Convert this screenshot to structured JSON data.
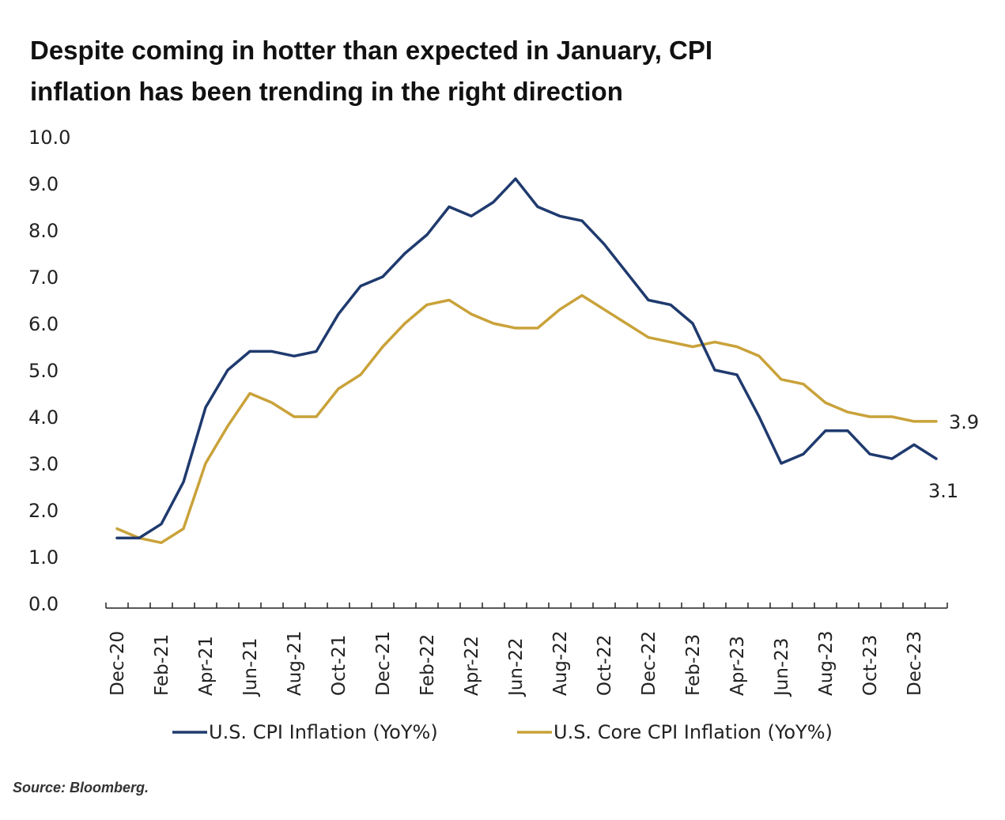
{
  "title_lines": [
    "Despite coming in hotter than expected in January, CPI",
    "inflation has been trending in the right direction"
  ],
  "source": "Source: Bloomberg.",
  "chart_data": {
    "type": "line",
    "title": "Despite coming in hotter than expected in January, CPI inflation has been trending in the right direction",
    "xlabel": "",
    "ylabel": "",
    "ylim": [
      0,
      10
    ],
    "yticks": [
      "0.0",
      "1.0",
      "2.0",
      "3.0",
      "4.0",
      "5.0",
      "6.0",
      "7.0",
      "8.0",
      "9.0",
      "10.0"
    ],
    "grid": false,
    "legend_position": "bottom",
    "x": [
      "Dec-20",
      "Jan-21",
      "Feb-21",
      "Mar-21",
      "Apr-21",
      "May-21",
      "Jun-21",
      "Jul-21",
      "Aug-21",
      "Sep-21",
      "Oct-21",
      "Nov-21",
      "Dec-21",
      "Jan-22",
      "Feb-22",
      "Mar-22",
      "Apr-22",
      "May-22",
      "Jun-22",
      "Jul-22",
      "Aug-22",
      "Sep-22",
      "Oct-22",
      "Nov-22",
      "Dec-22",
      "Jan-23",
      "Feb-23",
      "Mar-23",
      "Apr-23",
      "May-23",
      "Jun-23",
      "Jul-23",
      "Aug-23",
      "Sep-23",
      "Oct-23",
      "Nov-23",
      "Dec-23",
      "Jan-24"
    ],
    "xtick_labels": [
      "Dec-20",
      "Feb-21",
      "Apr-21",
      "Jun-21",
      "Aug-21",
      "Oct-21",
      "Dec-21",
      "Feb-22",
      "Apr-22",
      "Jun-22",
      "Aug-22",
      "Oct-22",
      "Dec-22",
      "Feb-23",
      "Apr-23",
      "Jun-23",
      "Aug-23",
      "Oct-23",
      "Dec-23"
    ],
    "series": [
      {
        "name": "U.S. CPI Inflation (YoY%)",
        "color": "#1f3a6e",
        "values": [
          1.4,
          1.4,
          1.7,
          2.6,
          4.2,
          5.0,
          5.4,
          5.4,
          5.3,
          5.4,
          6.2,
          6.8,
          7.0,
          7.5,
          7.9,
          8.5,
          8.3,
          8.6,
          9.1,
          8.5,
          8.3,
          8.2,
          7.7,
          7.1,
          6.5,
          6.4,
          6.0,
          5.0,
          4.9,
          4.0,
          3.0,
          3.2,
          3.7,
          3.7,
          3.2,
          3.1,
          3.4,
          3.1
        ],
        "end_label": "3.1"
      },
      {
        "name": "U.S. Core CPI Inflation (YoY%)",
        "color": "#c9a23a",
        "values": [
          1.6,
          1.4,
          1.3,
          1.6,
          3.0,
          3.8,
          4.5,
          4.3,
          4.0,
          4.0,
          4.6,
          4.9,
          5.5,
          6.0,
          6.4,
          6.5,
          6.2,
          6.0,
          5.9,
          5.9,
          6.3,
          6.6,
          6.3,
          6.0,
          5.7,
          5.6,
          5.5,
          5.6,
          5.5,
          5.3,
          4.8,
          4.7,
          4.3,
          4.1,
          4.0,
          4.0,
          3.9,
          3.9
        ],
        "end_label": "3.9"
      }
    ]
  }
}
